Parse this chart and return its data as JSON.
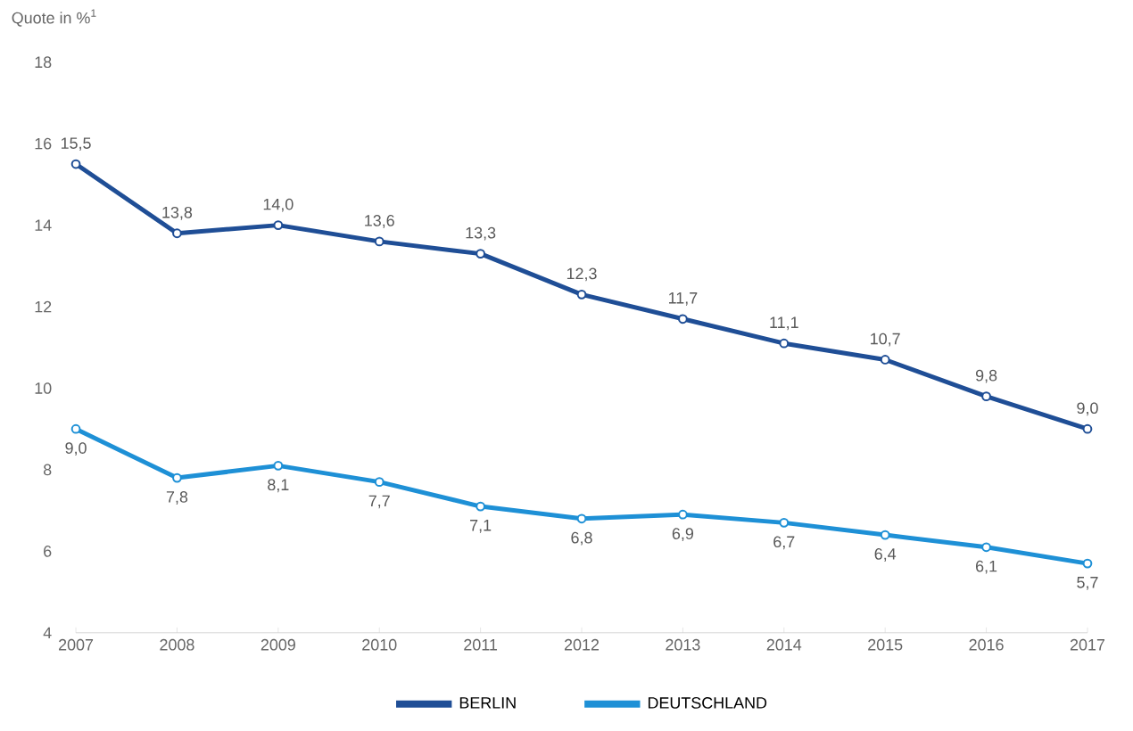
{
  "chart_data": {
    "type": "line",
    "ylabel": "Quote in %$^{1}$",
    "categories": [
      "2007",
      "2008",
      "2009",
      "2010",
      "2011",
      "2012",
      "2013",
      "2014",
      "2015",
      "2016",
      "2017"
    ],
    "ylim": [
      4,
      18
    ],
    "yticks": [
      4,
      6,
      8,
      10,
      12,
      14,
      16,
      18
    ],
    "marker": "circle",
    "line_style": "solid",
    "legend": "bottom",
    "series": [
      {
        "name": "BERLIN",
        "color": "#1f4e96",
        "values": [
          15.5,
          13.8,
          14.0,
          13.6,
          13.3,
          12.3,
          11.7,
          11.1,
          10.7,
          9.8,
          9.0
        ],
        "value_labels": [
          "15,5",
          "13,8",
          "14,0",
          "13,6",
          "13,3",
          "12,3",
          "11,7",
          "11,1",
          "10,7",
          "9,8",
          "9,0"
        ]
      },
      {
        "name": "DEUTSCHLAND",
        "color": "#1e90d6",
        "values": [
          9.0,
          7.8,
          8.1,
          7.7,
          7.1,
          6.8,
          6.9,
          6.7,
          6.4,
          6.1,
          5.7
        ],
        "value_labels": [
          "9,0",
          "7,8",
          "8,1",
          "7,7",
          "7,1",
          "6,8",
          "6,9",
          "6,7",
          "6,4",
          "6,1",
          "5,7"
        ]
      }
    ]
  }
}
